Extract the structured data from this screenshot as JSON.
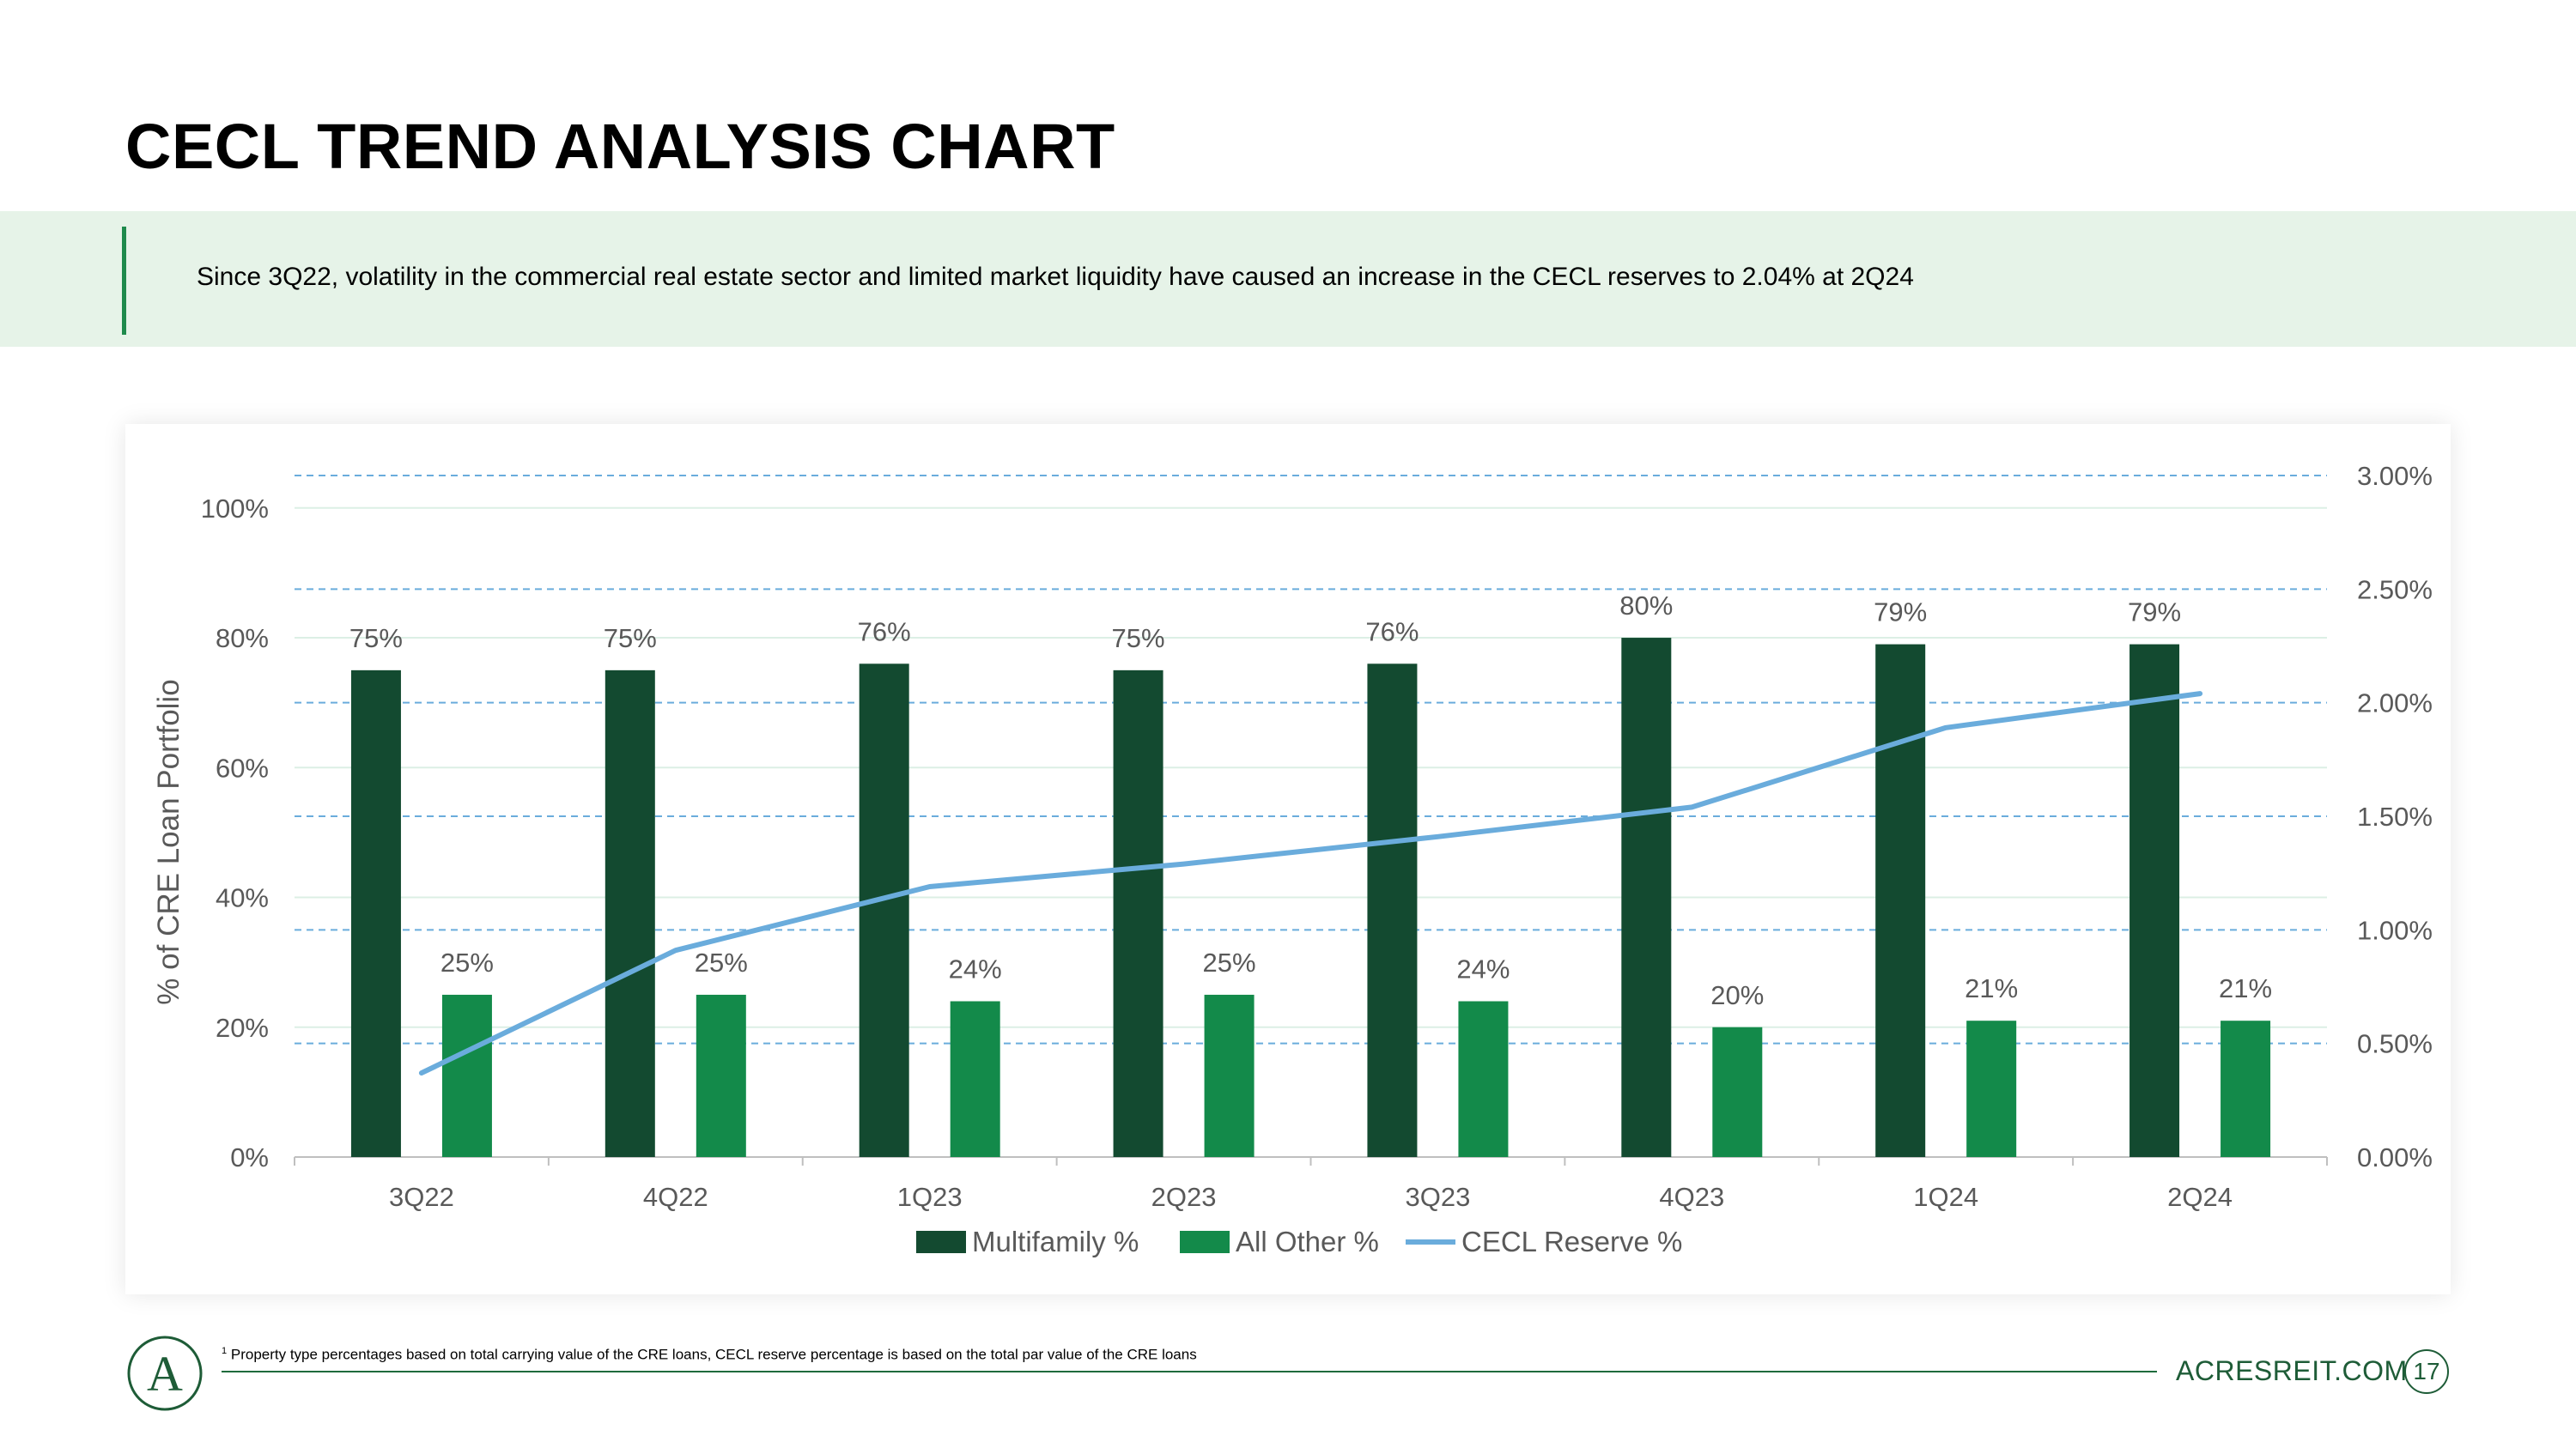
{
  "page": {
    "title": "CECL TREND ANALYSIS CHART",
    "banner_text": "Since 3Q22, volatility in the commercial real estate sector and limited market liquidity have caused an increase in the CECL reserves to 2.04% at 2Q24",
    "footnote_marker": "1",
    "footnote_text": "Property type percentages based on total carrying value of the CRE loans, CECL reserve percentage is based on the total par value of the CRE loans",
    "website": "ACRESREIT.COM",
    "page_number": "17",
    "logo_letter": "A"
  },
  "colors": {
    "multifamily": "#134a30",
    "all_other": "#138a4a",
    "cecl_line": "#6aacdc",
    "grid_primary": "#dcefe5",
    "grid_secondary": "#6aacdc",
    "axis_text": "#595959"
  },
  "chart_data": {
    "type": "bar",
    "title": "",
    "categories": [
      "3Q22",
      "4Q22",
      "1Q23",
      "2Q23",
      "3Q23",
      "4Q23",
      "1Q24",
      "2Q24"
    ],
    "series": [
      {
        "name": "Multifamily %",
        "kind": "bar",
        "axis": "primary",
        "values": [
          75,
          75,
          76,
          75,
          76,
          80,
          79,
          79
        ],
        "labels": [
          "75%",
          "75%",
          "76%",
          "75%",
          "76%",
          "80%",
          "79%",
          "79%"
        ]
      },
      {
        "name": "All Other %",
        "kind": "bar",
        "axis": "primary",
        "values": [
          25,
          25,
          24,
          25,
          24,
          20,
          21,
          21
        ],
        "labels": [
          "25%",
          "25%",
          "24%",
          "25%",
          "24%",
          "20%",
          "21%",
          "21%"
        ]
      },
      {
        "name": "CECL Reserve %",
        "kind": "line",
        "axis": "secondary",
        "values": [
          0.37,
          0.91,
          1.19,
          1.29,
          1.41,
          1.54,
          1.89,
          2.04
        ]
      }
    ],
    "ylabel": "% of CRE Loan Portfolio",
    "ylim": [
      0,
      105
    ],
    "yticks": [
      "0%",
      "20%",
      "40%",
      "60%",
      "80%",
      "100%"
    ],
    "ytick_values": [
      0,
      20,
      40,
      60,
      80,
      100
    ],
    "y2lim": [
      0,
      3.0
    ],
    "y2ticks": [
      "0.00%",
      "0.50%",
      "1.00%",
      "1.50%",
      "2.00%",
      "2.50%",
      "3.00%"
    ],
    "y2tick_values": [
      0,
      0.5,
      1.0,
      1.5,
      2.0,
      2.5,
      3.0
    ],
    "legend_position": "bottom-center"
  }
}
